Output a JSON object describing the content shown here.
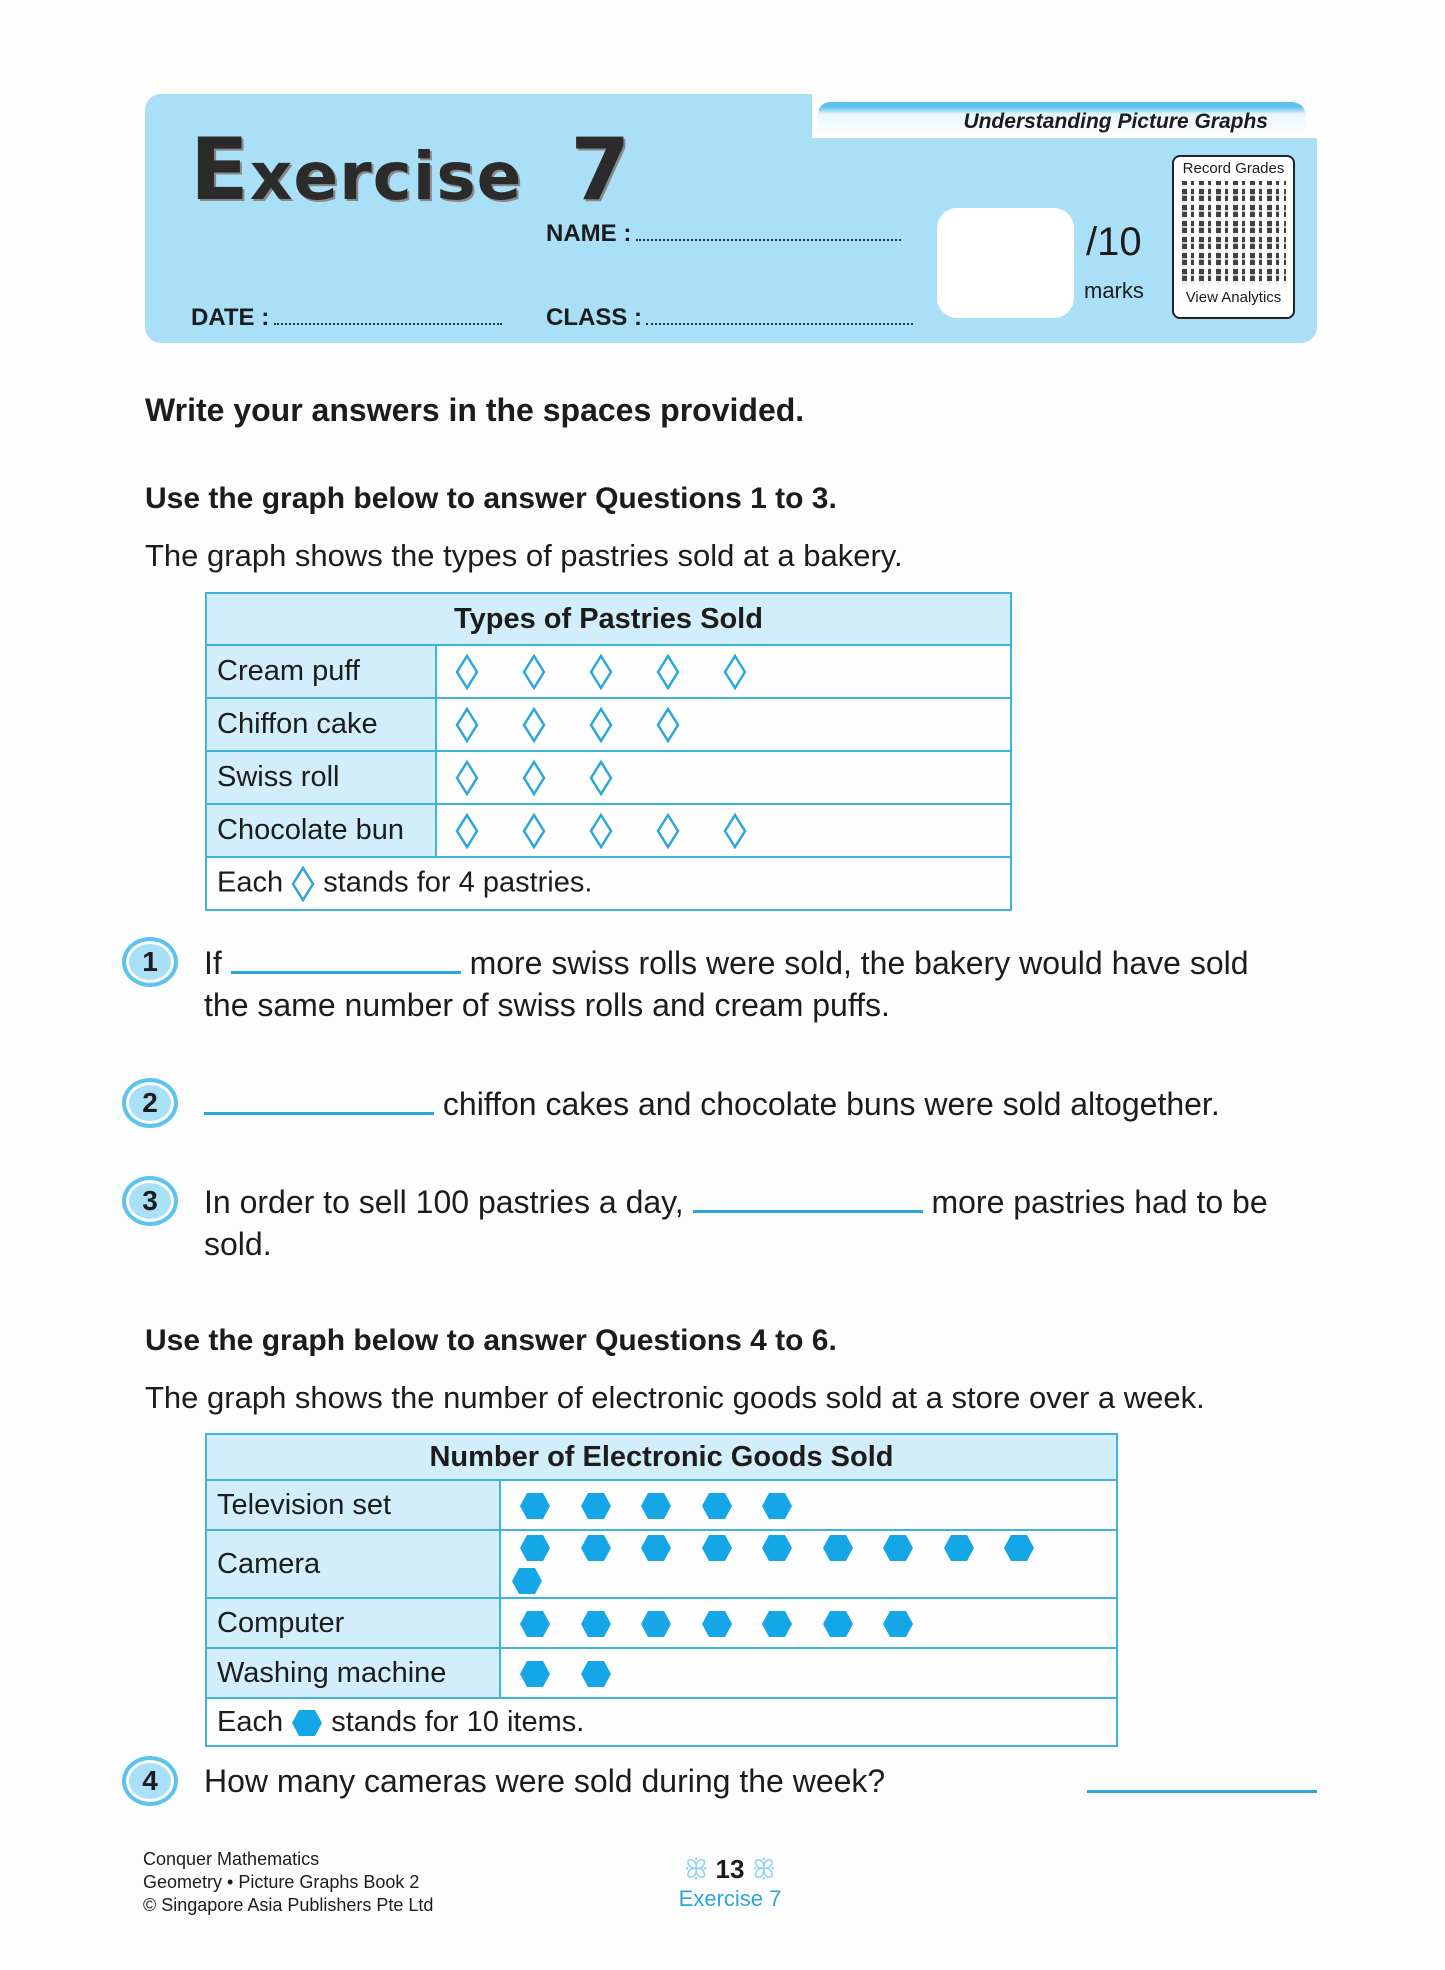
{
  "header": {
    "title_first_letter": "E",
    "title_rest": "xercise",
    "title_number": "7",
    "topic": "Understanding Picture Graphs",
    "name_label": "NAME :",
    "date_label": "DATE :",
    "class_label": "CLASS :",
    "score_total": "/10",
    "marks_label": "marks",
    "qr_top": "Record Grades",
    "qr_bottom": "View Analytics"
  },
  "instructions": "Write your answers in the spaces provided.",
  "section1": {
    "heading": "Use the graph below to answer Questions 1 to 3.",
    "description": "The graph shows the types of pastries sold at a bakery."
  },
  "section2": {
    "heading": "Use the graph below to answer Questions 4 to 6.",
    "description": "The graph shows the number of electronic goods sold at a store over a week."
  },
  "chart_data": [
    {
      "type": "table",
      "title": "Types of Pastries Sold",
      "categories": [
        "Cream puff",
        "Chiffon cake",
        "Swiss roll",
        "Chocolate bun"
      ],
      "symbol_counts": [
        5,
        4,
        3,
        5
      ],
      "symbol": "diamond",
      "key_pre": "Each",
      "key_post": "stands for 4 pastries.",
      "symbol_value": 4,
      "color": "#2da7d8"
    },
    {
      "type": "table",
      "title": "Number of Electronic Goods Sold",
      "categories": [
        "Television set",
        "Camera",
        "Computer",
        "Washing machine"
      ],
      "symbol_counts": [
        5,
        10,
        7,
        2
      ],
      "symbol": "hexagon",
      "key_pre": "Each",
      "key_post": "stands for 10 items.",
      "symbol_value": 10,
      "color": "#14a6e6"
    }
  ],
  "questions": [
    {
      "num": "1",
      "pre": "If",
      "post": "more swiss rolls were sold, the bakery would have sold",
      "line2": "the same number of swiss rolls and cream puffs."
    },
    {
      "num": "2",
      "post": "chiffon cakes and chocolate buns were sold altogether."
    },
    {
      "num": "3",
      "pre": "In order to sell 100 pastries a day,",
      "post": "more pastries had to be",
      "line2": "sold."
    },
    {
      "num": "4",
      "pre": "How many cameras were sold during the week?"
    }
  ],
  "footer": {
    "line1": "Conquer Mathematics",
    "line2": "Geometry • Picture Graphs Book 2",
    "line3": "© Singapore Asia Publishers Pte Ltd",
    "page_number": "13",
    "exercise": "Exercise 7"
  }
}
